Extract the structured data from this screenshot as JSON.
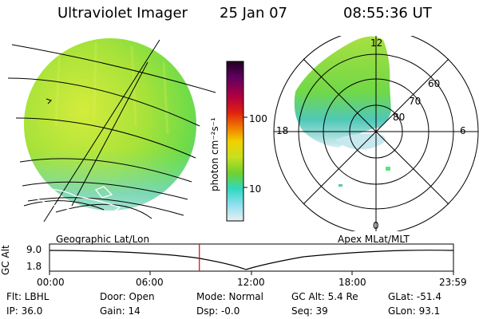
{
  "header": {
    "instrument": "Ultraviolet Imager",
    "date": "25 Jan 07",
    "time": "08:55:36 UT"
  },
  "colorbar": {
    "unit_label": "photon cm⁻²s⁻¹",
    "ticks": [
      "100",
      "10"
    ],
    "scale": "log"
  },
  "polar_plot": {
    "mlt_labels": [
      "12",
      "18",
      "6",
      "0"
    ],
    "mlat_labels": [
      "60",
      "70",
      "80"
    ]
  },
  "track": {
    "left_label": "Geographic Lat/Lon",
    "right_label": "Apex MLat/MLT",
    "axis_title": "GC Alt",
    "y_ticks": [
      "9.0",
      "1.8"
    ],
    "x_ticks": [
      "00:00",
      "06:00",
      "12:00",
      "18:00",
      "23:59"
    ],
    "current_time_fraction": 0.371,
    "marker_color": "#e00000"
  },
  "status": {
    "row1": [
      "Flt: LBHL",
      "Door: Open",
      "Mode: Normal",
      "GC Alt: 5.4 Re",
      "GLat: -51.4"
    ],
    "row2": [
      "IP: 36.0",
      "Gain: 14",
      "Dsp:  -0.0",
      "Seq: 39",
      "GLon:  93.1"
    ]
  }
}
